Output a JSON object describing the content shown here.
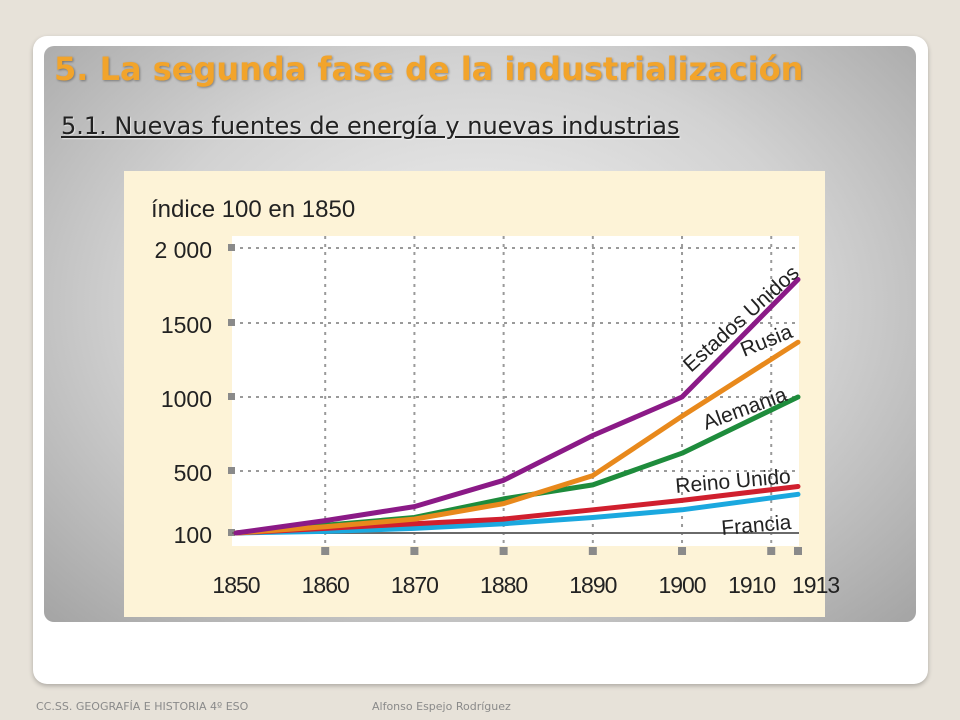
{
  "slide": {
    "title": "5. La segunda fase de la industrialización",
    "subtitle": "5.1. Nuevas fuentes de energía y nuevas industrias",
    "footer_left": "CC.SS. GEOGRAFÍA E HISTORIA 4º ESO",
    "footer_right": "Alfonso Espejo Rodríguez"
  },
  "colors": {
    "title": "#f2a42b",
    "chart_background": "#fdf3d7",
    "plot_background": "#ffffff"
  },
  "chart_data": {
    "type": "line",
    "title": "",
    "ylabel": "índice 100 en 1850",
    "xlabel": "",
    "x": [
      1850,
      1860,
      1870,
      1880,
      1890,
      1900,
      1910,
      1913
    ],
    "x_tick_labels": [
      "1850",
      "1860",
      "1870",
      "1880",
      "1890",
      "1900",
      "1910",
      "1913"
    ],
    "y_ticks": [
      100,
      500,
      1000,
      1500,
      2000
    ],
    "y_tick_labels": [
      "100",
      "500",
      "1000",
      "1500",
      "2 000"
    ],
    "ylim": [
      100,
      2000
    ],
    "grid": true,
    "legend": "inline labels",
    "series": [
      {
        "name": "Estados Unidos",
        "color": "#8b1a87",
        "points": [
          [
            1850,
            100
          ],
          [
            1860,
            180
          ],
          [
            1870,
            270
          ],
          [
            1880,
            440
          ],
          [
            1890,
            740
          ],
          [
            1900,
            1000
          ],
          [
            1913,
            1790
          ]
        ]
      },
      {
        "name": "Rusia",
        "color": "#e8891c",
        "points": [
          [
            1850,
            100
          ],
          [
            1860,
            140
          ],
          [
            1870,
            190
          ],
          [
            1880,
            290
          ],
          [
            1890,
            470
          ],
          [
            1900,
            870
          ],
          [
            1913,
            1370
          ]
        ]
      },
      {
        "name": "Alemania",
        "color": "#1e8c3c",
        "points": [
          [
            1850,
            100
          ],
          [
            1860,
            150
          ],
          [
            1870,
            200
          ],
          [
            1880,
            320
          ],
          [
            1890,
            410
          ],
          [
            1900,
            620
          ],
          [
            1913,
            1000
          ]
        ]
      },
      {
        "name": "Reino Unido",
        "color": "#d01f2e",
        "points": [
          [
            1850,
            100
          ],
          [
            1860,
            130
          ],
          [
            1870,
            160
          ],
          [
            1880,
            190
          ],
          [
            1890,
            250
          ],
          [
            1900,
            310
          ],
          [
            1913,
            400
          ]
        ]
      },
      {
        "name": "Francia",
        "color": "#1ba8df",
        "points": [
          [
            1850,
            100
          ],
          [
            1860,
            110
          ],
          [
            1870,
            130
          ],
          [
            1880,
            160
          ],
          [
            1890,
            200
          ],
          [
            1900,
            250
          ],
          [
            1913,
            350
          ]
        ]
      }
    ]
  }
}
